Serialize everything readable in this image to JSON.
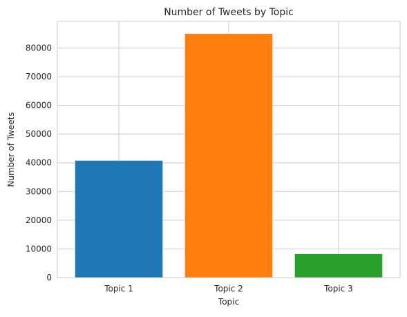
{
  "chart_data": {
    "type": "bar",
    "title": "Number of Tweets by Topic",
    "xlabel": "Topic",
    "ylabel": "Number of Tweets",
    "categories": [
      "Topic 1",
      "Topic 2",
      "Topic 3"
    ],
    "values": [
      40800,
      85000,
      8300
    ],
    "colors": [
      "#1f77b4",
      "#ff7f0e",
      "#2ca02c"
    ],
    "ylim": [
      0,
      89250
    ],
    "yticks": [
      0,
      10000,
      20000,
      30000,
      40000,
      50000,
      60000,
      70000,
      80000
    ],
    "grid": true,
    "legend": "none"
  }
}
